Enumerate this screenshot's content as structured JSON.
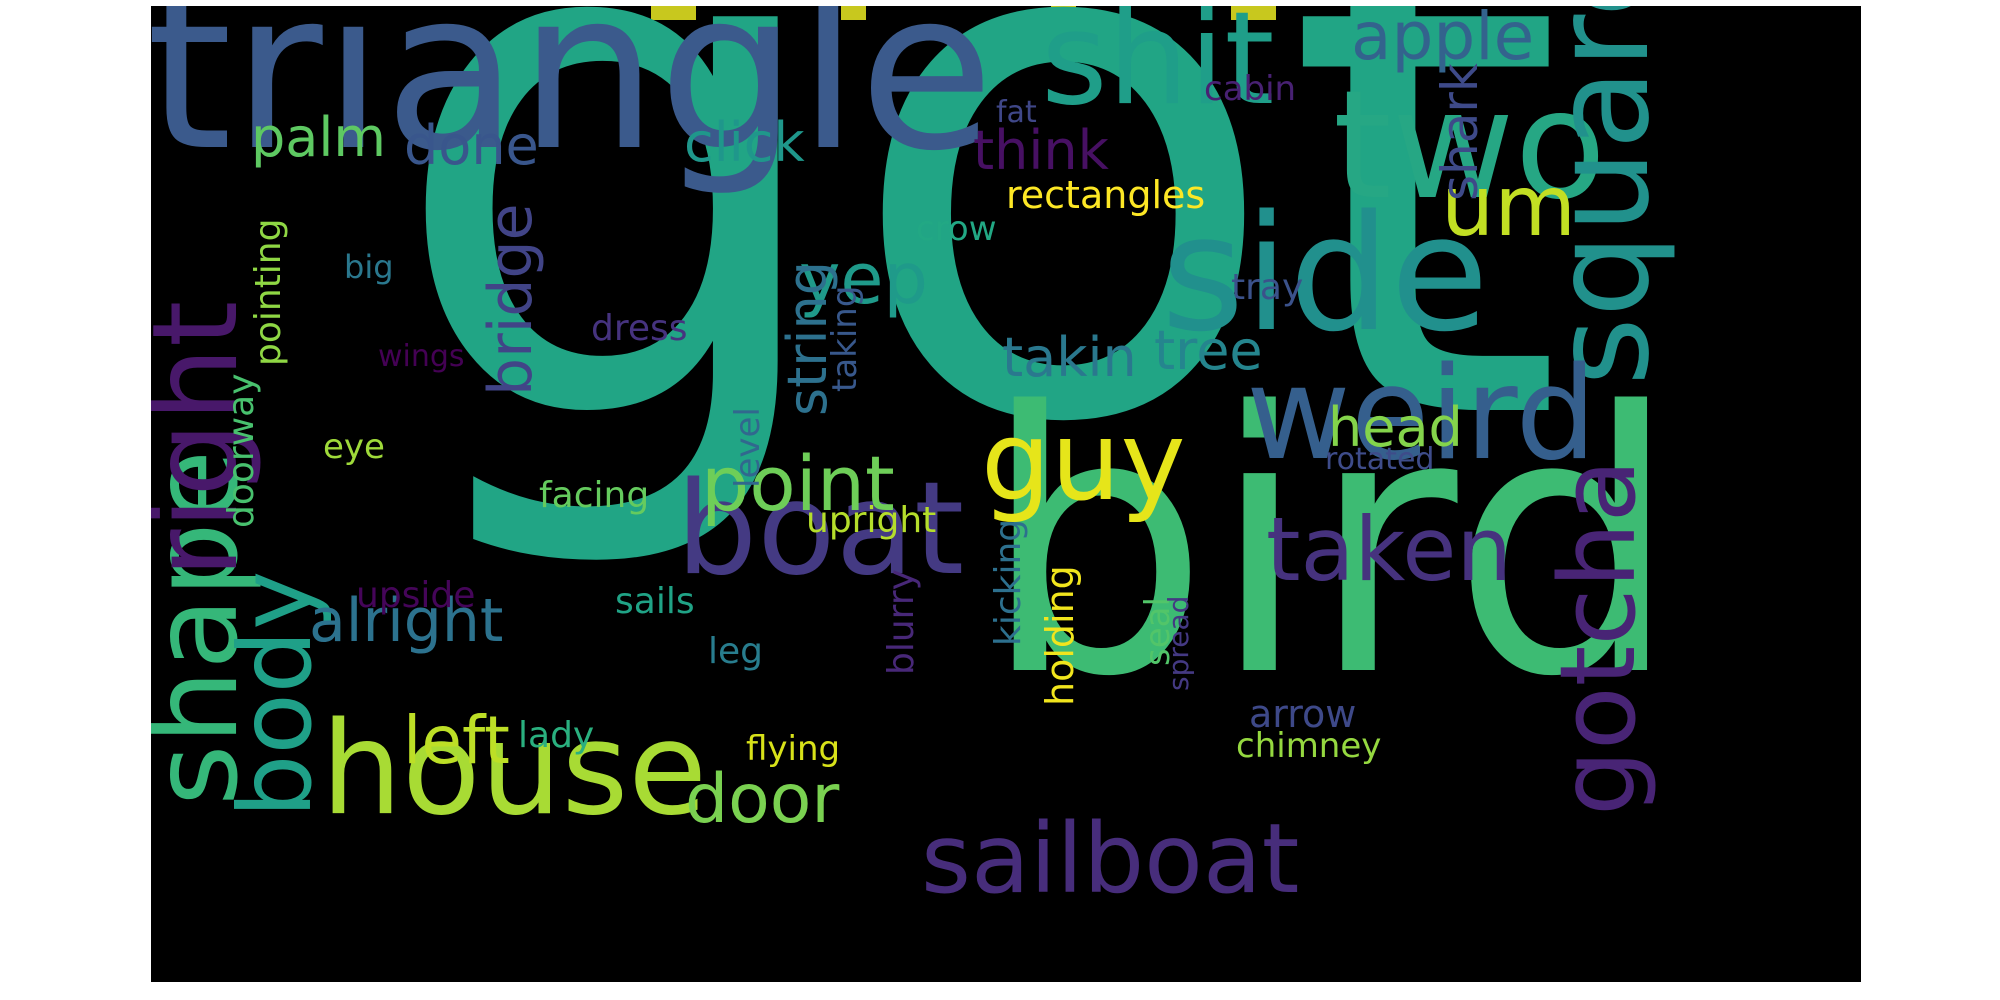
{
  "background": "#000000",
  "colormap": "viridis",
  "words": [
    {
      "text": "got",
      "color": "#21a585"
    },
    {
      "text": "bird",
      "color": "#3dbb73"
    },
    {
      "text": "triangle",
      "color": "#3b5a8c"
    },
    {
      "text": "shit",
      "color": "#1f9e89"
    },
    {
      "text": "two",
      "color": "#26a784"
    },
    {
      "text": "side",
      "color": "#21908d"
    },
    {
      "text": "square",
      "color": "#21918c"
    },
    {
      "text": "weird",
      "color": "#355f8d"
    },
    {
      "text": "house",
      "color": "#a8db34"
    },
    {
      "text": "boat",
      "color": "#443a83"
    },
    {
      "text": "sailboat",
      "color": "#472d7b"
    },
    {
      "text": "gotcha",
      "color": "#482475"
    },
    {
      "text": "shape",
      "color": "#35b779"
    },
    {
      "text": "right",
      "color": "#48186a"
    },
    {
      "text": "body",
      "color": "#1fa088"
    },
    {
      "text": "guy",
      "color": "#e6e51a"
    },
    {
      "text": "taken",
      "color": "#46327e"
    },
    {
      "text": "point",
      "color": "#6ece58"
    },
    {
      "text": "um",
      "color": "#c2df23"
    },
    {
      "text": "apple",
      "color": "#33638d"
    },
    {
      "text": "yep",
      "color": "#1f9a8a"
    },
    {
      "text": "left",
      "color": "#bddf26"
    },
    {
      "text": "door",
      "color": "#7ad151"
    },
    {
      "text": "alright",
      "color": "#2c728e"
    },
    {
      "text": "bridge",
      "color": "#414487"
    },
    {
      "text": "palm",
      "color": "#5ec962"
    },
    {
      "text": "done",
      "color": "#39568c"
    },
    {
      "text": "click",
      "color": "#1f978b"
    },
    {
      "text": "think",
      "color": "#471063"
    },
    {
      "text": "takin",
      "color": "#2a788e"
    },
    {
      "text": "tree",
      "color": "#25858e"
    },
    {
      "text": "head",
      "color": "#84d44b"
    },
    {
      "text": "string",
      "color": "#2d718e"
    },
    {
      "text": "shark",
      "color": "#3e4a89"
    },
    {
      "text": "rectangles",
      "color": "#fde725"
    },
    {
      "text": "cabin",
      "color": "#482173"
    },
    {
      "text": "fat",
      "color": "#3f4788"
    },
    {
      "text": "crow",
      "color": "#22a884"
    },
    {
      "text": "tray",
      "color": "#3b528b"
    },
    {
      "text": "big",
      "color": "#2a788e"
    },
    {
      "text": "pointing",
      "color": "#8fd744"
    },
    {
      "text": "doorway",
      "color": "#48c16e"
    },
    {
      "text": "dress",
      "color": "#46337f"
    },
    {
      "text": "wings",
      "color": "#440154"
    },
    {
      "text": "eye",
      "color": "#9fda3a"
    },
    {
      "text": "facing",
      "color": "#65cb5e"
    },
    {
      "text": "level",
      "color": "#31688e"
    },
    {
      "text": "taking",
      "color": "#38588c"
    },
    {
      "text": "upright",
      "color": "#b5de2b"
    },
    {
      "text": "sails",
      "color": "#20a386"
    },
    {
      "text": "upside",
      "color": "#450559"
    },
    {
      "text": "leg",
      "color": "#287d8e"
    },
    {
      "text": "blurry",
      "color": "#482878"
    },
    {
      "text": "kicking",
      "color": "#2d708e"
    },
    {
      "text": "holding",
      "color": "#f1e51d"
    },
    {
      "text": "seal",
      "color": "#52c569"
    },
    {
      "text": "spread",
      "color": "#443983"
    },
    {
      "text": "rotated",
      "color": "#3e4c8a"
    },
    {
      "text": "arrow",
      "color": "#3e4989"
    },
    {
      "text": "chimney",
      "color": "#95d840"
    },
    {
      "text": "flying",
      "color": "#d8e219"
    },
    {
      "text": "lady",
      "color": "#2ab07f"
    }
  ]
}
